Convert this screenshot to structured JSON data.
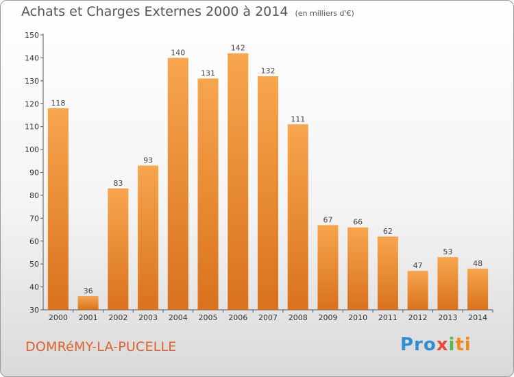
{
  "header": {
    "title": "Achats et Charges Externes 2000 à 2014",
    "unit": "(en milliers d'€)"
  },
  "footer": {
    "commune": "DOMRéMY-LA-PUCELLE",
    "logo": [
      "Pro",
      "x",
      "i",
      "ti"
    ]
  },
  "colors": {
    "bar_top": "#f7a64e",
    "bar_bottom": "#d9711d",
    "title": "#555555",
    "commune": "#e0622a"
  },
  "chart_data": {
    "type": "bar",
    "title": "Achats et Charges Externes 2000 à 2014",
    "subtitle": "(en milliers d'€)",
    "xlabel": "",
    "ylabel": "",
    "categories": [
      "2000",
      "2001",
      "2002",
      "2003",
      "2004",
      "2005",
      "2006",
      "2007",
      "2008",
      "2009",
      "2010",
      "2011",
      "2012",
      "2013",
      "2014"
    ],
    "values": [
      118,
      36,
      83,
      93,
      140,
      131,
      142,
      132,
      111,
      67,
      66,
      62,
      47,
      53,
      48
    ],
    "yticks": [
      30,
      40,
      50,
      60,
      70,
      80,
      90,
      100,
      110,
      120,
      130,
      140,
      150
    ],
    "ylim": [
      30,
      150
    ],
    "grid": false,
    "data_labels": true
  }
}
